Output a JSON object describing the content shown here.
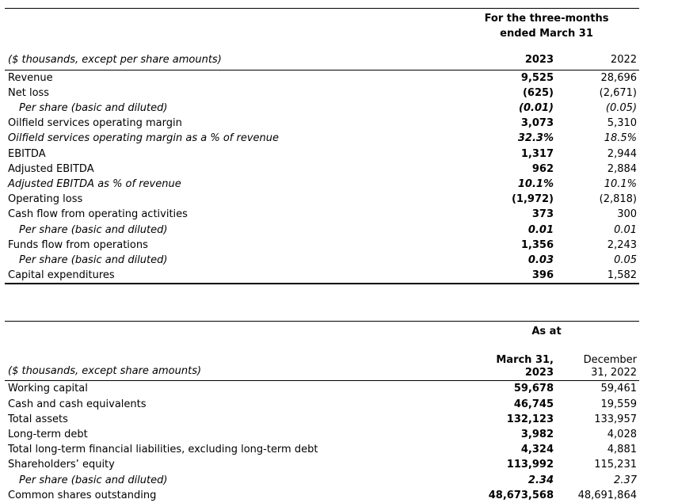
{
  "table1": {
    "period_header_line1": "For the three-months",
    "period_header_line2": "ended March 31",
    "unit_note": "($ thousands, except per share amounts)",
    "col_2023": "2023",
    "col_2022": "2022",
    "rows": [
      {
        "label": "Revenue",
        "v2023": "9,525",
        "v2022": "28,696"
      },
      {
        "label": "Net loss",
        "v2023": "(625)",
        "v2022": "(2,671)"
      },
      {
        "label": "Per share (basic and diluted)",
        "v2023": "(0.01)",
        "v2022": "(0.05)"
      },
      {
        "label": "Oilfield services operating margin",
        "v2023": "3,073",
        "v2022": "5,310"
      },
      {
        "label": "Oilfield services operating margin as a % of revenue",
        "v2023": "32.3%",
        "v2022": "18.5%"
      },
      {
        "label": "EBITDA",
        "v2023": "1,317",
        "v2022": "2,944"
      },
      {
        "label": "Adjusted EBITDA",
        "v2023": "962",
        "v2022": "2,884"
      },
      {
        "label": "Adjusted EBITDA as % of revenue",
        "v2023": "10.1%",
        "v2022": "10.1%"
      },
      {
        "label": "Operating loss",
        "v2023": "(1,972)",
        "v2022": "(2,818)"
      },
      {
        "label": "Cash flow from operating activities",
        "v2023": "373",
        "v2022": "300"
      },
      {
        "label": "Per share (basic and diluted)",
        "v2023": "0.01",
        "v2022": "0.01"
      },
      {
        "label": "Funds flow from operations",
        "v2023": "1,356",
        "v2022": "2,243"
      },
      {
        "label": "Per share (basic and diluted)",
        "v2023": "0.03",
        "v2022": "0.05"
      },
      {
        "label": "Capital expenditures",
        "v2023": "396",
        "v2022": "1,582"
      }
    ]
  },
  "table2": {
    "period_header": "As at",
    "unit_note": "($ thousands, except share amounts)",
    "col1_line1": "March 31,",
    "col1_line2": "2023",
    "col2_line1": "December",
    "col2_line2": "31, 2022",
    "rows": [
      {
        "label": "Working capital",
        "v1": "59,678",
        "v2": "59,461"
      },
      {
        "label": "Cash and cash equivalents",
        "v1": "46,745",
        "v2": "19,559"
      },
      {
        "label": "Total assets",
        "v1": "132,123",
        "v2": "133,957"
      },
      {
        "label": "Long-term debt",
        "v1": "3,982",
        "v2": "4,028"
      },
      {
        "label": "Total long-term financial liabilities, excluding long-term debt",
        "v1": "4,324",
        "v2": "4,881"
      },
      {
        "label": "Shareholders’ equity",
        "v1": "113,992",
        "v2": "115,231"
      },
      {
        "label": "Per share (basic and diluted)",
        "v1": "2.34",
        "v2": "2.37"
      },
      {
        "label": "Common shares outstanding",
        "v1": "48,673,568",
        "v2": "48,691,864"
      }
    ]
  }
}
